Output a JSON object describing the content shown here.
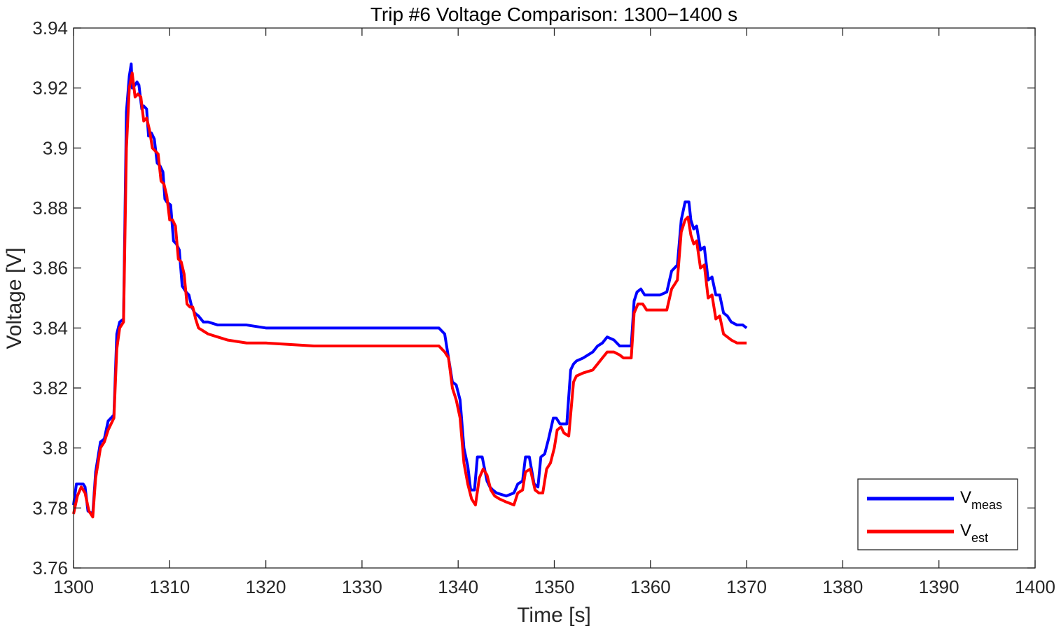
{
  "chart_data": {
    "type": "line",
    "title": "Trip #6 Voltage Comparison: 1300−1400 s",
    "xlabel": "Time [s]",
    "ylabel": "Voltage [V]",
    "xlim": [
      1300,
      1400
    ],
    "ylim": [
      3.76,
      3.94
    ],
    "xticks": [
      1300,
      1310,
      1320,
      1330,
      1340,
      1350,
      1360,
      1370,
      1380,
      1390,
      1400
    ],
    "yticks": [
      3.76,
      3.78,
      3.8,
      3.82,
      3.84,
      3.86,
      3.88,
      3.9,
      3.92,
      3.94
    ],
    "xtick_labels": [
      "1300",
      "1310",
      "1320",
      "1330",
      "1340",
      "1350",
      "1360",
      "1370",
      "1380",
      "1390",
      "1400"
    ],
    "ytick_labels": [
      "3.76",
      "3.78",
      "3.8",
      "3.82",
      "3.84",
      "3.86",
      "3.88",
      "3.9",
      "3.92",
      "3.94"
    ],
    "grid": false,
    "legend_position": "bottom-right",
    "series": [
      {
        "name_main": "V",
        "name_sub": "meas",
        "color": "#0000ff",
        "x": [
          1300,
          1300.3,
          1301,
          1301.2,
          1301.5,
          1302,
          1302.3,
          1302.8,
          1303.2,
          1303.6,
          1304.2,
          1304.5,
          1304.8,
          1305.2,
          1305.5,
          1305.8,
          1306,
          1306.1,
          1306.4,
          1306.6,
          1306.8,
          1307.1,
          1307.3,
          1307.6,
          1307.8,
          1308.1,
          1308.4,
          1308.7,
          1309,
          1309.3,
          1309.5,
          1309.7,
          1310.1,
          1310.4,
          1310.7,
          1311,
          1311.3,
          1311.7,
          1312,
          1312.3,
          1312.6,
          1313,
          1313.5,
          1314,
          1315,
          1316,
          1318,
          1320,
          1325,
          1330,
          1335,
          1338,
          1338.6,
          1339,
          1339.4,
          1339.8,
          1340.2,
          1340.6,
          1341,
          1341.3,
          1341.7,
          1342,
          1342.5,
          1343,
          1343.3,
          1343.6,
          1344,
          1345,
          1345.8,
          1346.2,
          1346.7,
          1347,
          1347.4,
          1347.9,
          1348.3,
          1348.6,
          1349,
          1349.4,
          1349.9,
          1350.2,
          1350.6,
          1351,
          1351.3,
          1351.7,
          1352,
          1352.3,
          1353,
          1354,
          1354.5,
          1355,
          1355.5,
          1356.2,
          1356.8,
          1357.2,
          1358,
          1358.3,
          1358.6,
          1359,
          1359.4,
          1360,
          1361,
          1361.7,
          1362.2,
          1362.8,
          1363.2,
          1363.6,
          1364,
          1364.2,
          1364.5,
          1364.8,
          1365.2,
          1365.6,
          1366,
          1366.4,
          1366.8,
          1367.2,
          1367.6,
          1368,
          1368.4,
          1369,
          1369.6,
          1370
        ],
        "y": [
          3.781,
          3.788,
          3.788,
          3.787,
          3.779,
          3.778,
          3.792,
          3.802,
          3.803,
          3.809,
          3.811,
          3.838,
          3.842,
          3.843,
          3.912,
          3.924,
          3.928,
          3.92,
          3.921,
          3.922,
          3.921,
          3.913,
          3.914,
          3.913,
          3.904,
          3.905,
          3.903,
          3.895,
          3.894,
          3.892,
          3.883,
          3.882,
          3.881,
          3.869,
          3.868,
          3.866,
          3.854,
          3.852,
          3.851,
          3.847,
          3.845,
          3.844,
          3.842,
          3.842,
          3.841,
          3.841,
          3.841,
          3.84,
          3.84,
          3.84,
          3.84,
          3.84,
          3.838,
          3.83,
          3.822,
          3.821,
          3.816,
          3.8,
          3.794,
          3.786,
          3.786,
          3.797,
          3.797,
          3.789,
          3.787,
          3.786,
          3.785,
          3.784,
          3.785,
          3.788,
          3.789,
          3.797,
          3.797,
          3.788,
          3.787,
          3.797,
          3.798,
          3.803,
          3.81,
          3.81,
          3.808,
          3.808,
          3.808,
          3.826,
          3.828,
          3.829,
          3.83,
          3.832,
          3.834,
          3.835,
          3.837,
          3.836,
          3.834,
          3.834,
          3.834,
          3.849,
          3.852,
          3.853,
          3.851,
          3.851,
          3.851,
          3.852,
          3.859,
          3.861,
          3.876,
          3.882,
          3.882,
          3.876,
          3.873,
          3.874,
          3.866,
          3.867,
          3.856,
          3.857,
          3.851,
          3.851,
          3.845,
          3.844,
          3.842,
          3.841,
          3.841,
          3.84
        ]
      },
      {
        "name_main": "V",
        "name_sub": "est",
        "color": "#ff0000",
        "x": [
          1300,
          1300.4,
          1300.8,
          1301.2,
          1301.6,
          1302,
          1302.3,
          1302.8,
          1303.2,
          1303.6,
          1304.2,
          1304.5,
          1304.8,
          1305.2,
          1305.5,
          1305.8,
          1306.1,
          1306.4,
          1306.7,
          1307,
          1307.3,
          1307.6,
          1307.9,
          1308.2,
          1308.5,
          1308.8,
          1309.1,
          1309.4,
          1309.7,
          1310,
          1310.3,
          1310.6,
          1310.9,
          1311.2,
          1311.5,
          1311.8,
          1312.1,
          1312.4,
          1312.7,
          1313,
          1313.5,
          1314,
          1315,
          1316,
          1318,
          1320,
          1325,
          1330,
          1335,
          1338,
          1338.6,
          1339,
          1339.4,
          1339.8,
          1340.2,
          1340.6,
          1341,
          1341.4,
          1341.8,
          1342.2,
          1342.6,
          1343,
          1343.4,
          1343.8,
          1344.3,
          1345,
          1345.8,
          1346.2,
          1346.7,
          1347,
          1347.5,
          1348,
          1348.4,
          1348.8,
          1349.2,
          1349.6,
          1350,
          1350.3,
          1350.7,
          1351,
          1351.5,
          1352,
          1352.3,
          1353,
          1354,
          1354.5,
          1355,
          1355.5,
          1356.2,
          1356.8,
          1357.2,
          1358,
          1358.3,
          1358.7,
          1359.2,
          1359.6,
          1360,
          1361,
          1361.7,
          1362.2,
          1362.8,
          1363.2,
          1363.6,
          1363.9,
          1364.2,
          1364.5,
          1364.8,
          1365.2,
          1365.6,
          1366,
          1366.4,
          1366.8,
          1367.2,
          1367.6,
          1368,
          1368.4,
          1369,
          1369.6,
          1370
        ],
        "y": [
          3.778,
          3.784,
          3.787,
          3.785,
          3.779,
          3.777,
          3.79,
          3.8,
          3.802,
          3.806,
          3.81,
          3.833,
          3.84,
          3.842,
          3.9,
          3.92,
          3.925,
          3.917,
          3.918,
          3.917,
          3.909,
          3.91,
          3.906,
          3.9,
          3.899,
          3.898,
          3.889,
          3.888,
          3.884,
          3.876,
          3.876,
          3.874,
          3.863,
          3.862,
          3.858,
          3.848,
          3.847,
          3.847,
          3.843,
          3.84,
          3.839,
          3.838,
          3.837,
          3.836,
          3.835,
          3.835,
          3.834,
          3.834,
          3.834,
          3.834,
          3.832,
          3.83,
          3.82,
          3.816,
          3.81,
          3.795,
          3.788,
          3.783,
          3.781,
          3.79,
          3.793,
          3.791,
          3.786,
          3.784,
          3.783,
          3.782,
          3.781,
          3.785,
          3.786,
          3.792,
          3.793,
          3.786,
          3.785,
          3.785,
          3.793,
          3.795,
          3.8,
          3.806,
          3.807,
          3.805,
          3.804,
          3.822,
          3.824,
          3.825,
          3.826,
          3.828,
          3.83,
          3.832,
          3.832,
          3.831,
          3.83,
          3.83,
          3.845,
          3.848,
          3.848,
          3.846,
          3.846,
          3.846,
          3.846,
          3.853,
          3.856,
          3.872,
          3.876,
          3.877,
          3.871,
          3.868,
          3.869,
          3.86,
          3.861,
          3.85,
          3.851,
          3.843,
          3.844,
          3.838,
          3.837,
          3.836,
          3.835,
          3.835,
          3.835
        ]
      }
    ]
  }
}
